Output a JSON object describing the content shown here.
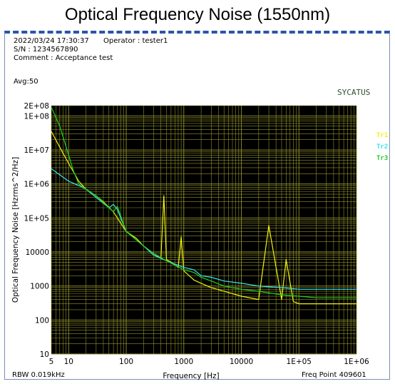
{
  "title": "Optical Frequency Noise (1550nm)",
  "header": {
    "datetime": "2022/03/24 17:30:37",
    "operator": "Operator : tester1",
    "serial": "S/N : 1234567890",
    "comment": "Comment : Acceptance test",
    "avg": "Avg:50"
  },
  "brand": "SYCATUS",
  "footer": {
    "rbw": "RBW 0.019kHz",
    "freq_point": "Freq Point 409601"
  },
  "colors": {
    "plot_bg": "#000000",
    "grid": "#8f8f2e",
    "tr1": "#f2f20f",
    "tr2": "#35e6f0",
    "tr3": "#1fd21f"
  },
  "chart_data": {
    "type": "line",
    "title": "Optical Frequency Noise (1550nm)",
    "xlabel": "Frequency [Hz]",
    "ylabel": "Optical Frequency Noise [Hzrms^2/Hz]",
    "x_scale": "log",
    "y_scale": "log",
    "xlim": [
      5,
      1000000
    ],
    "ylim": [
      10,
      200000000
    ],
    "x_ticks": [
      {
        "v": 5,
        "label": "5"
      },
      {
        "v": 10,
        "label": "10"
      },
      {
        "v": 100,
        "label": "100"
      },
      {
        "v": 1000,
        "label": "1000"
      },
      {
        "v": 10000,
        "label": "10000"
      },
      {
        "v": 100000,
        "label": "1E+05"
      },
      {
        "v": 1000000,
        "label": "1E+06"
      }
    ],
    "y_ticks": [
      {
        "v": 200000000,
        "label": "2E+08"
      },
      {
        "v": 100000000,
        "label": "1E+08"
      },
      {
        "v": 10000000,
        "label": "1E+07"
      },
      {
        "v": 1000000,
        "label": "1E+06"
      },
      {
        "v": 100000,
        "label": "1E+05"
      },
      {
        "v": 10000,
        "label": "10000"
      },
      {
        "v": 1000,
        "label": "1000"
      },
      {
        "v": 100,
        "label": "100"
      },
      {
        "v": 10,
        "label": "10"
      }
    ],
    "grid": true,
    "legend_position": "right",
    "series": [
      {
        "name": "Tr1",
        "color": "#f2f20f",
        "x": [
          5,
          7,
          10,
          15,
          20,
          30,
          40,
          60,
          100,
          150,
          200,
          300,
          400,
          450,
          500,
          600,
          800,
          900,
          1000,
          1500,
          2000,
          3000,
          5000,
          10000,
          20000,
          30000,
          50000,
          60000,
          80000,
          100000,
          200000,
          500000,
          1000000
        ],
        "y": [
          35000000,
          12000000,
          4000000,
          1200000,
          700000,
          450000,
          300000,
          150000,
          40000,
          25000,
          15000,
          9000,
          6500,
          450000,
          6000,
          5000,
          3500,
          28000,
          2800,
          1500,
          1200,
          900,
          700,
          500,
          400,
          60000,
          400,
          6000,
          350,
          300,
          300,
          300,
          300
        ]
      },
      {
        "name": "Tr2",
        "color": "#35e6f0",
        "x": [
          5,
          10,
          15,
          20,
          30,
          50,
          60,
          70,
          100,
          200,
          300,
          500,
          1000,
          1500,
          2000,
          3000,
          5000,
          10000,
          20000,
          50000,
          100000,
          200000,
          500000,
          1000000
        ],
        "y": [
          2800000,
          1200000,
          900000,
          700000,
          400000,
          200000,
          250000,
          180000,
          40000,
          15000,
          8000,
          5500,
          3500,
          3000,
          2000,
          1800,
          1400,
          1200,
          1000,
          900,
          800,
          800,
          800,
          800
        ]
      },
      {
        "name": "Tr3",
        "color": "#1fd21f",
        "x": [
          5,
          7,
          10,
          12,
          15,
          20,
          30,
          50,
          60,
          70,
          100,
          200,
          300,
          500,
          1000,
          1500,
          2000,
          3000,
          5000,
          10000,
          20000,
          50000,
          100000,
          200000,
          500000,
          1000000
        ],
        "y": [
          180000000,
          50000000,
          7000000,
          2500000,
          1000000,
          700000,
          450000,
          200000,
          150000,
          220000,
          40000,
          15000,
          9000,
          5500,
          3000,
          2500,
          1800,
          1400,
          1000,
          800,
          700,
          550,
          500,
          450,
          450,
          450
        ]
      }
    ]
  }
}
